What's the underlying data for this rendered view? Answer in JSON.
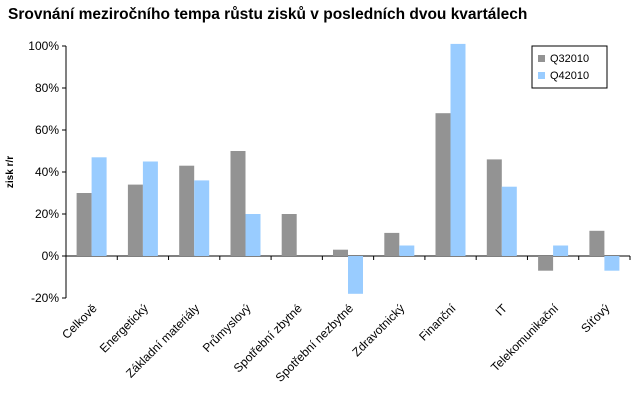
{
  "chart_data": {
    "type": "bar",
    "title": "Srovnání meziročního tempa růstu zisků v posledních dvou kvartálech",
    "xlabel": "",
    "ylabel": "zisk r/r",
    "ylim": [
      -20,
      100
    ],
    "yticks": [
      -20,
      0,
      20,
      40,
      60,
      80,
      100
    ],
    "ytick_labels": [
      "-20%",
      "0%",
      "20%",
      "40%",
      "60%",
      "80%",
      "100%"
    ],
    "grid": false,
    "legend_position": "top-right",
    "categories": [
      "Celkově",
      "Energetický",
      "Základní materiály",
      "Průmyslový",
      "Spotřební zbytné",
      "Spotřební nezbytné",
      "Zdravotnický",
      "Finanční",
      "IT",
      "Telekomunikační",
      "Síťový"
    ],
    "series": [
      {
        "name": "Q32010",
        "color": "#939393",
        "values": [
          30,
          34,
          43,
          50,
          20,
          3,
          11,
          68,
          46,
          -7,
          12
        ]
      },
      {
        "name": "Q42010",
        "color": "#99ccff",
        "values": [
          47,
          45,
          36,
          20,
          0,
          -18,
          5,
          101,
          33,
          5,
          -7
        ]
      }
    ]
  }
}
